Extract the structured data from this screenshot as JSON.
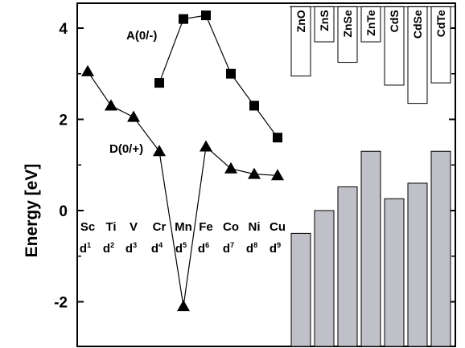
{
  "chart_data": {
    "type": "line",
    "ylabel": "Energy [eV]",
    "ylim": [
      -2.9,
      4.5
    ],
    "yticks": [
      -2,
      0,
      2,
      4
    ],
    "categories": [
      "Sc",
      "Ti",
      "V",
      "Cr",
      "Mn",
      "Fe",
      "Co",
      "Ni",
      "Cu"
    ],
    "category_sublabels": [
      {
        "base": "d",
        "sup": "1"
      },
      {
        "base": "d",
        "sup": "2"
      },
      {
        "base": "d",
        "sup": "3"
      },
      {
        "base": "d",
        "sup": "4"
      },
      {
        "base": "d",
        "sup": "5"
      },
      {
        "base": "d",
        "sup": "6"
      },
      {
        "base": "d",
        "sup": "7"
      },
      {
        "base": "d",
        "sup": "8"
      },
      {
        "base": "d",
        "sup": "9"
      }
    ],
    "series": [
      {
        "name": "D(0/+)",
        "marker": "triangle",
        "values": [
          3.05,
          2.3,
          2.05,
          1.3,
          -2.1,
          1.4,
          0.92,
          0.8,
          0.77
        ]
      },
      {
        "name": "A(0/-)",
        "marker": "square",
        "values": [
          null,
          null,
          null,
          2.8,
          4.2,
          4.28,
          3.0,
          2.3,
          1.6
        ]
      }
    ],
    "bar_groups": {
      "categories": [
        "ZnO",
        "ZnS",
        "ZnSe",
        "ZnTe",
        "CdS",
        "CdSe",
        "CdTe"
      ],
      "valence_band": [
        -0.5,
        0.0,
        0.52,
        1.3,
        0.26,
        0.6,
        1.3
      ],
      "conduction_band": [
        2.95,
        3.7,
        3.25,
        3.7,
        2.75,
        2.35,
        2.8
      ],
      "top_cutoff": 4.47,
      "bar_color": "#c0c0c8",
      "box_color": "#ffffff"
    },
    "grid": false
  }
}
